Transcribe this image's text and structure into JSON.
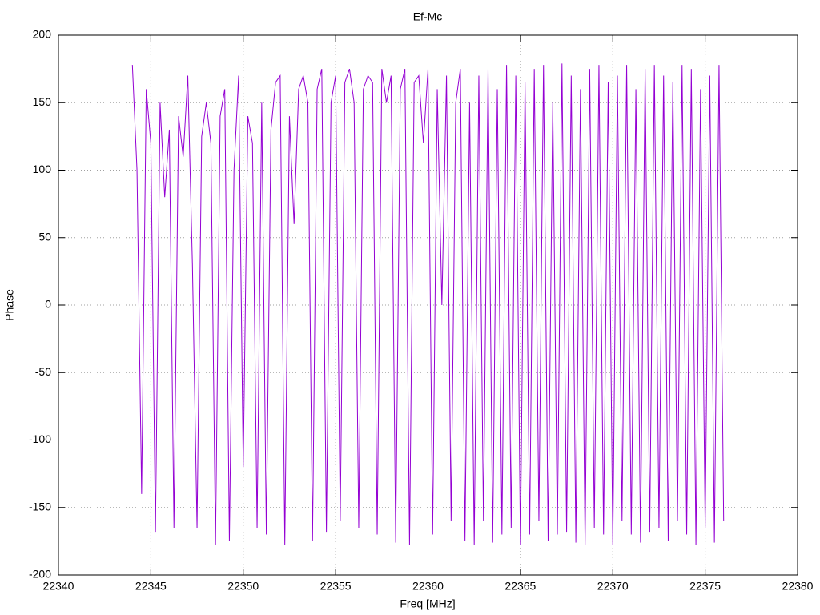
{
  "chart_data": {
    "type": "line",
    "title": "Ef-Mc",
    "x_label": "Freq [MHz]",
    "y_label": "Phase",
    "color": "#9400d3",
    "grid": true,
    "xlim": [
      22340,
      22380
    ],
    "xticks": [
      22340,
      22345,
      22350,
      22355,
      22360,
      22365,
      22370,
      22375,
      22380
    ],
    "ylim": [
      -200,
      200
    ],
    "yticks": [
      -200,
      -150,
      -100,
      -50,
      0,
      50,
      100,
      150,
      200
    ],
    "x": [
      22344,
      22344.25,
      22344.5,
      22344.75,
      22345,
      22345.25,
      22345.5,
      22345.75,
      22346,
      22346.25,
      22346.5,
      22346.75,
      22347,
      22347.25,
      22347.5,
      22347.75,
      22348,
      22348.25,
      22348.5,
      22348.75,
      22349,
      22349.25,
      22349.5,
      22349.75,
      22350,
      22350.25,
      22350.5,
      22350.75,
      22351,
      22351.25,
      22351.5,
      22351.75,
      22352,
      22352.25,
      22352.5,
      22352.75,
      22353,
      22353.25,
      22353.5,
      22353.75,
      22354,
      22354.25,
      22354.5,
      22354.75,
      22355,
      22355.25,
      22355.5,
      22355.75,
      22356,
      22356.25,
      22356.5,
      22356.75,
      22357,
      22357.25,
      22357.5,
      22357.75,
      22358,
      22358.25,
      22358.5,
      22358.75,
      22359,
      22359.25,
      22359.5,
      22359.75,
      22360,
      22360.25,
      22360.5,
      22360.75,
      22361,
      22361.25,
      22361.5,
      22361.75,
      22362,
      22362.25,
      22362.5,
      22362.75,
      22363,
      22363.25,
      22363.5,
      22363.75,
      22364,
      22364.25,
      22364.5,
      22364.75,
      22365,
      22365.25,
      22365.5,
      22365.75,
      22366,
      22366.25,
      22366.5,
      22366.75,
      22367,
      22367.25,
      22367.5,
      22367.75,
      22368,
      22368.25,
      22368.5,
      22368.75,
      22369,
      22369.25,
      22369.5,
      22369.75,
      22370,
      22370.25,
      22370.5,
      22370.75,
      22371,
      22371.25,
      22371.5,
      22371.75,
      22372,
      22372.25,
      22372.5,
      22372.75,
      22373,
      22373.25,
      22373.5,
      22373.75,
      22374,
      22374.25,
      22374.5,
      22374.75,
      22375,
      22375.25,
      22375.5,
      22375.75,
      22376
    ],
    "values": [
      178,
      100,
      -140,
      160,
      120,
      -168,
      150,
      80,
      130,
      -165,
      140,
      110,
      170,
      30,
      -165,
      125,
      150,
      120,
      -178,
      140,
      160,
      -175,
      100,
      170,
      -120,
      140,
      120,
      -165,
      150,
      -170,
      130,
      165,
      170,
      -178,
      140,
      60,
      160,
      170,
      150,
      -175,
      160,
      175,
      -168,
      150,
      170,
      -160,
      165,
      175,
      150,
      -165,
      160,
      170,
      165,
      -170,
      175,
      150,
      170,
      -176,
      160,
      175,
      -178,
      165,
      170,
      120,
      175,
      -170,
      160,
      0,
      170,
      -160,
      150,
      175,
      -175,
      150,
      -178,
      170,
      -160,
      175,
      -176,
      160,
      -170,
      178,
      -165,
      170,
      -178,
      165,
      -170,
      175,
      -160,
      178,
      -175,
      150,
      -170,
      179,
      -168,
      170,
      -176,
      160,
      -178,
      175,
      -165,
      178,
      -170,
      165,
      -178,
      170,
      -160,
      178,
      -170,
      160,
      -176,
      175,
      -168,
      178,
      -165,
      170,
      -175,
      165,
      -160,
      178,
      -170,
      175,
      -178,
      160,
      -165,
      170,
      -176,
      178,
      -160
    ]
  }
}
